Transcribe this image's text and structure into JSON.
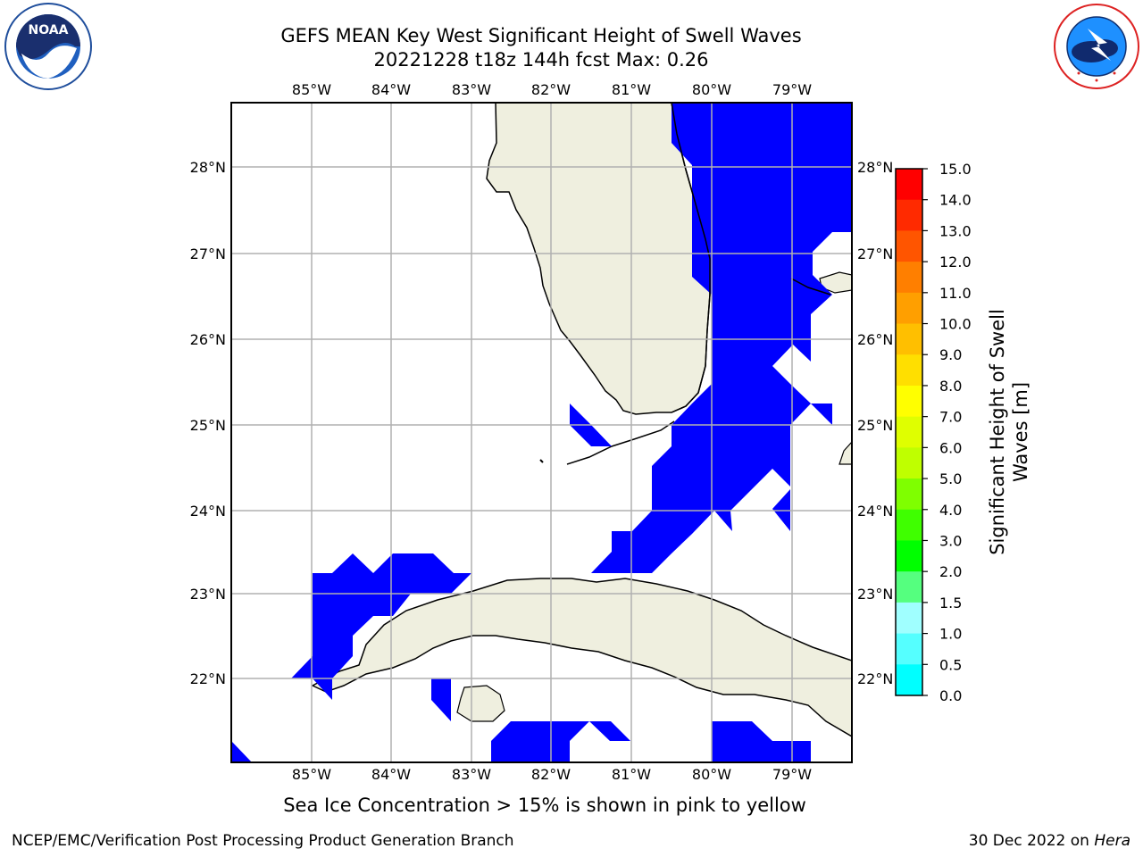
{
  "header": {
    "title": "GEFS MEAN Key West Significant Height of Swell Waves",
    "subtitle": "20221228 t18z 144h fcst   Max: 0.26"
  },
  "logos": {
    "left": "NOAA",
    "left_ring_text": "NATIONAL OCEANIC AND ATMOSPHERIC ADMINISTRATION · U.S. DEPARTMENT OF COMMERCE ·",
    "right_ring_text": "NATIONAL WEATHER SERVICE"
  },
  "map": {
    "lon_labels": [
      "85°W",
      "84°W",
      "83°W",
      "82°W",
      "81°W",
      "80°W",
      "79°W"
    ],
    "lat_labels": [
      "28°N",
      "27°N",
      "26°N",
      "25°N",
      "24°N",
      "23°N",
      "22°N"
    ],
    "colors": {
      "land": "#efefdf",
      "swell_low": "#0000ff",
      "grid": "#b0b0b0"
    }
  },
  "colorbar": {
    "label": "Significant Height of Swell Waves [m]",
    "label_line1": "Significant Height of Swell",
    "label_line2": "Waves [m]",
    "ticks": [
      "15.0",
      "14.0",
      "13.0",
      "12.0",
      "11.0",
      "10.0",
      "9.0",
      "8.0",
      "7.0",
      "6.0",
      "5.0",
      "4.0",
      "3.0",
      "2.0",
      "1.5",
      "1.0",
      "0.5",
      "0.0"
    ],
    "colors": [
      "#ff0000",
      "#ff2a00",
      "#ff5500",
      "#ff7f00",
      "#ff9f00",
      "#ffbf00",
      "#ffdf00",
      "#ffff00",
      "#dfff00",
      "#bfff00",
      "#7fff00",
      "#3fff00",
      "#00ff00",
      "#55ff7f",
      "#a0ffff",
      "#55ffff",
      "#00ffff",
      "#007fff",
      "#0000ff"
    ]
  },
  "footer": {
    "note": "Sea Ice Concentration > 15% is shown in pink to yellow",
    "credit": "NCEP/EMC/Verification Post Processing Product Generation Branch",
    "date": "30 Dec 2022 on",
    "machine": "Hera"
  }
}
